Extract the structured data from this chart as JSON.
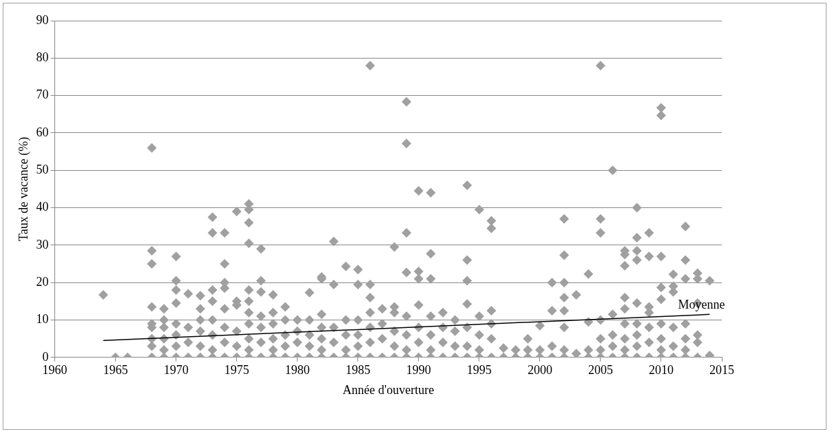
{
  "chart_data": {
    "type": "scatter",
    "xlabel": "Année d'ouverture",
    "ylabel": "Taux de vacance (%)",
    "xlim": [
      1960,
      2015
    ],
    "xticks": [
      1960,
      1965,
      1970,
      1975,
      1980,
      1985,
      1990,
      1995,
      2000,
      2005,
      2010,
      2015
    ],
    "ylim": [
      0,
      90
    ],
    "yticks": [
      0,
      10,
      20,
      30,
      40,
      50,
      60,
      70,
      80,
      90
    ],
    "grid": "y",
    "marker": "diamond",
    "legend": false,
    "series": [
      {
        "type": "scatter",
        "color": "#a0a0a0",
        "x": [
          1964,
          1965,
          1966,
          1968,
          1968,
          1968,
          1968,
          1968,
          1968,
          1968,
          1968,
          1968,
          1969,
          1969,
          1969,
          1969,
          1969,
          1969,
          1970,
          1970,
          1970,
          1970,
          1970,
          1970,
          1970,
          1970,
          1971,
          1971,
          1971,
          1971,
          1972,
          1972,
          1972,
          1972,
          1972,
          1972,
          1973,
          1973,
          1973,
          1973,
          1973,
          1973,
          1973,
          1973,
          1974,
          1974,
          1974,
          1974,
          1974,
          1974,
          1974,
          1974,
          1975,
          1975,
          1975,
          1975,
          1975,
          1975,
          1976,
          1976,
          1976,
          1976,
          1976,
          1976,
          1976,
          1976,
          1976,
          1976,
          1976,
          1977,
          1977,
          1977,
          1977,
          1977,
          1977,
          1977,
          1978,
          1978,
          1978,
          1978,
          1978,
          1978,
          1979,
          1979,
          1979,
          1979,
          1979,
          1980,
          1980,
          1980,
          1980,
          1981,
          1981,
          1981,
          1981,
          1981,
          1982,
          1982,
          1982,
          1982,
          1982,
          1982,
          1982,
          1983,
          1983,
          1983,
          1983,
          1983,
          1984,
          1984,
          1984,
          1984,
          1984,
          1985,
          1985,
          1985,
          1985,
          1985,
          1985,
          1986,
          1986,
          1986,
          1986,
          1986,
          1986,
          1986,
          1987,
          1987,
          1987,
          1987,
          1988,
          1988,
          1988,
          1988,
          1988,
          1988,
          1989,
          1989,
          1989,
          1989,
          1989,
          1989,
          1989,
          1989,
          1990,
          1990,
          1990,
          1990,
          1990,
          1990,
          1990,
          1991,
          1991,
          1991,
          1991,
          1991,
          1991,
          1991,
          1992,
          1992,
          1992,
          1992,
          1993,
          1993,
          1993,
          1993,
          1994,
          1994,
          1994,
          1994,
          1994,
          1994,
          1994,
          1995,
          1995,
          1995,
          1995,
          1995,
          1996,
          1996,
          1996,
          1996,
          1996,
          1996,
          1997,
          1997,
          1998,
          1998,
          1999,
          1999,
          1999,
          2000,
          2000,
          2000,
          2001,
          2001,
          2001,
          2001,
          2002,
          2002,
          2002,
          2002,
          2002,
          2002,
          2002,
          2002,
          2003,
          2003,
          2004,
          2004,
          2004,
          2004,
          2005,
          2005,
          2005,
          2005,
          2005,
          2005,
          2005,
          2006,
          2006,
          2006,
          2006,
          2006,
          2007,
          2007,
          2007,
          2007,
          2007,
          2007,
          2007,
          2007,
          2007,
          2008,
          2008,
          2008,
          2008,
          2008,
          2008,
          2008,
          2008,
          2008,
          2009,
          2009,
          2009,
          2009,
          2009,
          2009,
          2009,
          2010,
          2010,
          2010,
          2010,
          2010,
          2010,
          2010,
          2010,
          2010,
          2011,
          2011,
          2011,
          2011,
          2011,
          2011,
          2012,
          2012,
          2012,
          2012,
          2012,
          2012,
          2012,
          2013,
          2013,
          2013,
          2013,
          2013,
          2013,
          2014,
          2014
        ],
        "values": [
          16.7,
          0,
          0,
          56,
          28.5,
          25,
          13.5,
          9,
          8,
          5,
          3,
          0,
          13,
          10,
          8,
          5,
          2,
          0,
          27,
          20.5,
          18,
          14.5,
          9,
          6,
          3,
          0,
          17,
          8,
          4,
          0,
          16.5,
          13,
          10,
          7,
          3,
          0,
          37.5,
          33.3,
          18,
          15,
          10,
          6,
          2,
          0,
          33.3,
          25,
          20,
          18.5,
          13,
          8,
          4,
          0,
          39,
          15,
          14,
          7,
          3,
          0,
          41,
          39.5,
          36,
          30.5,
          18,
          15,
          12,
          9,
          5,
          2,
          0,
          29,
          20.5,
          17.5,
          11,
          8,
          4,
          0,
          16.7,
          12,
          9,
          5,
          2,
          0,
          13.5,
          10,
          6,
          3,
          0,
          10,
          7,
          4,
          0,
          17.3,
          10,
          6,
          3,
          0,
          21.5,
          21,
          11.5,
          8,
          5,
          2,
          0,
          31,
          19.5,
          8,
          4,
          0,
          24.3,
          10,
          6,
          2,
          0,
          23.5,
          19.5,
          10,
          6,
          3,
          0,
          78,
          19.5,
          16,
          12,
          8,
          4,
          0,
          13,
          9,
          5,
          0,
          29.5,
          13.5,
          12,
          7,
          3,
          0,
          68.3,
          57.2,
          33.3,
          22.7,
          11,
          6,
          2,
          0,
          44.5,
          23,
          21,
          14,
          8,
          4,
          0,
          44,
          27.7,
          21,
          11,
          6,
          2,
          0,
          12,
          8,
          4,
          0,
          10,
          7,
          3,
          0,
          46,
          26,
          20.5,
          14.3,
          8,
          3,
          0,
          39.5,
          11,
          6,
          2,
          0,
          36.5,
          34.5,
          12.5,
          9,
          5,
          0,
          2.5,
          0,
          2,
          0,
          5,
          2,
          0,
          8.5,
          2,
          0,
          20,
          12.5,
          3,
          0,
          37,
          27.3,
          20,
          16,
          12.5,
          8,
          2,
          0,
          16.7,
          1,
          22.3,
          9.5,
          2,
          0,
          78,
          37,
          33.3,
          10,
          5,
          2,
          0,
          50,
          11.5,
          6,
          3,
          0,
          28.5,
          27.5,
          24.5,
          16,
          13,
          9,
          5,
          2,
          0,
          40,
          32,
          28.5,
          26,
          14.5,
          9,
          6,
          3,
          0,
          33.3,
          27,
          13.5,
          12,
          8,
          4,
          0,
          66.7,
          64.7,
          27,
          18.7,
          15.5,
          9,
          5,
          2,
          0,
          22.2,
          19,
          17.5,
          8,
          3,
          0,
          35,
          26,
          21,
          9,
          5,
          2,
          0,
          22.5,
          21,
          14.5,
          6,
          4,
          0,
          20.5,
          0.5
        ]
      },
      {
        "type": "line",
        "name": "Moyenne",
        "color": "#000000",
        "marker": "none",
        "x": [
          1964,
          2014
        ],
        "values": [
          4.5,
          11.5
        ]
      }
    ]
  }
}
